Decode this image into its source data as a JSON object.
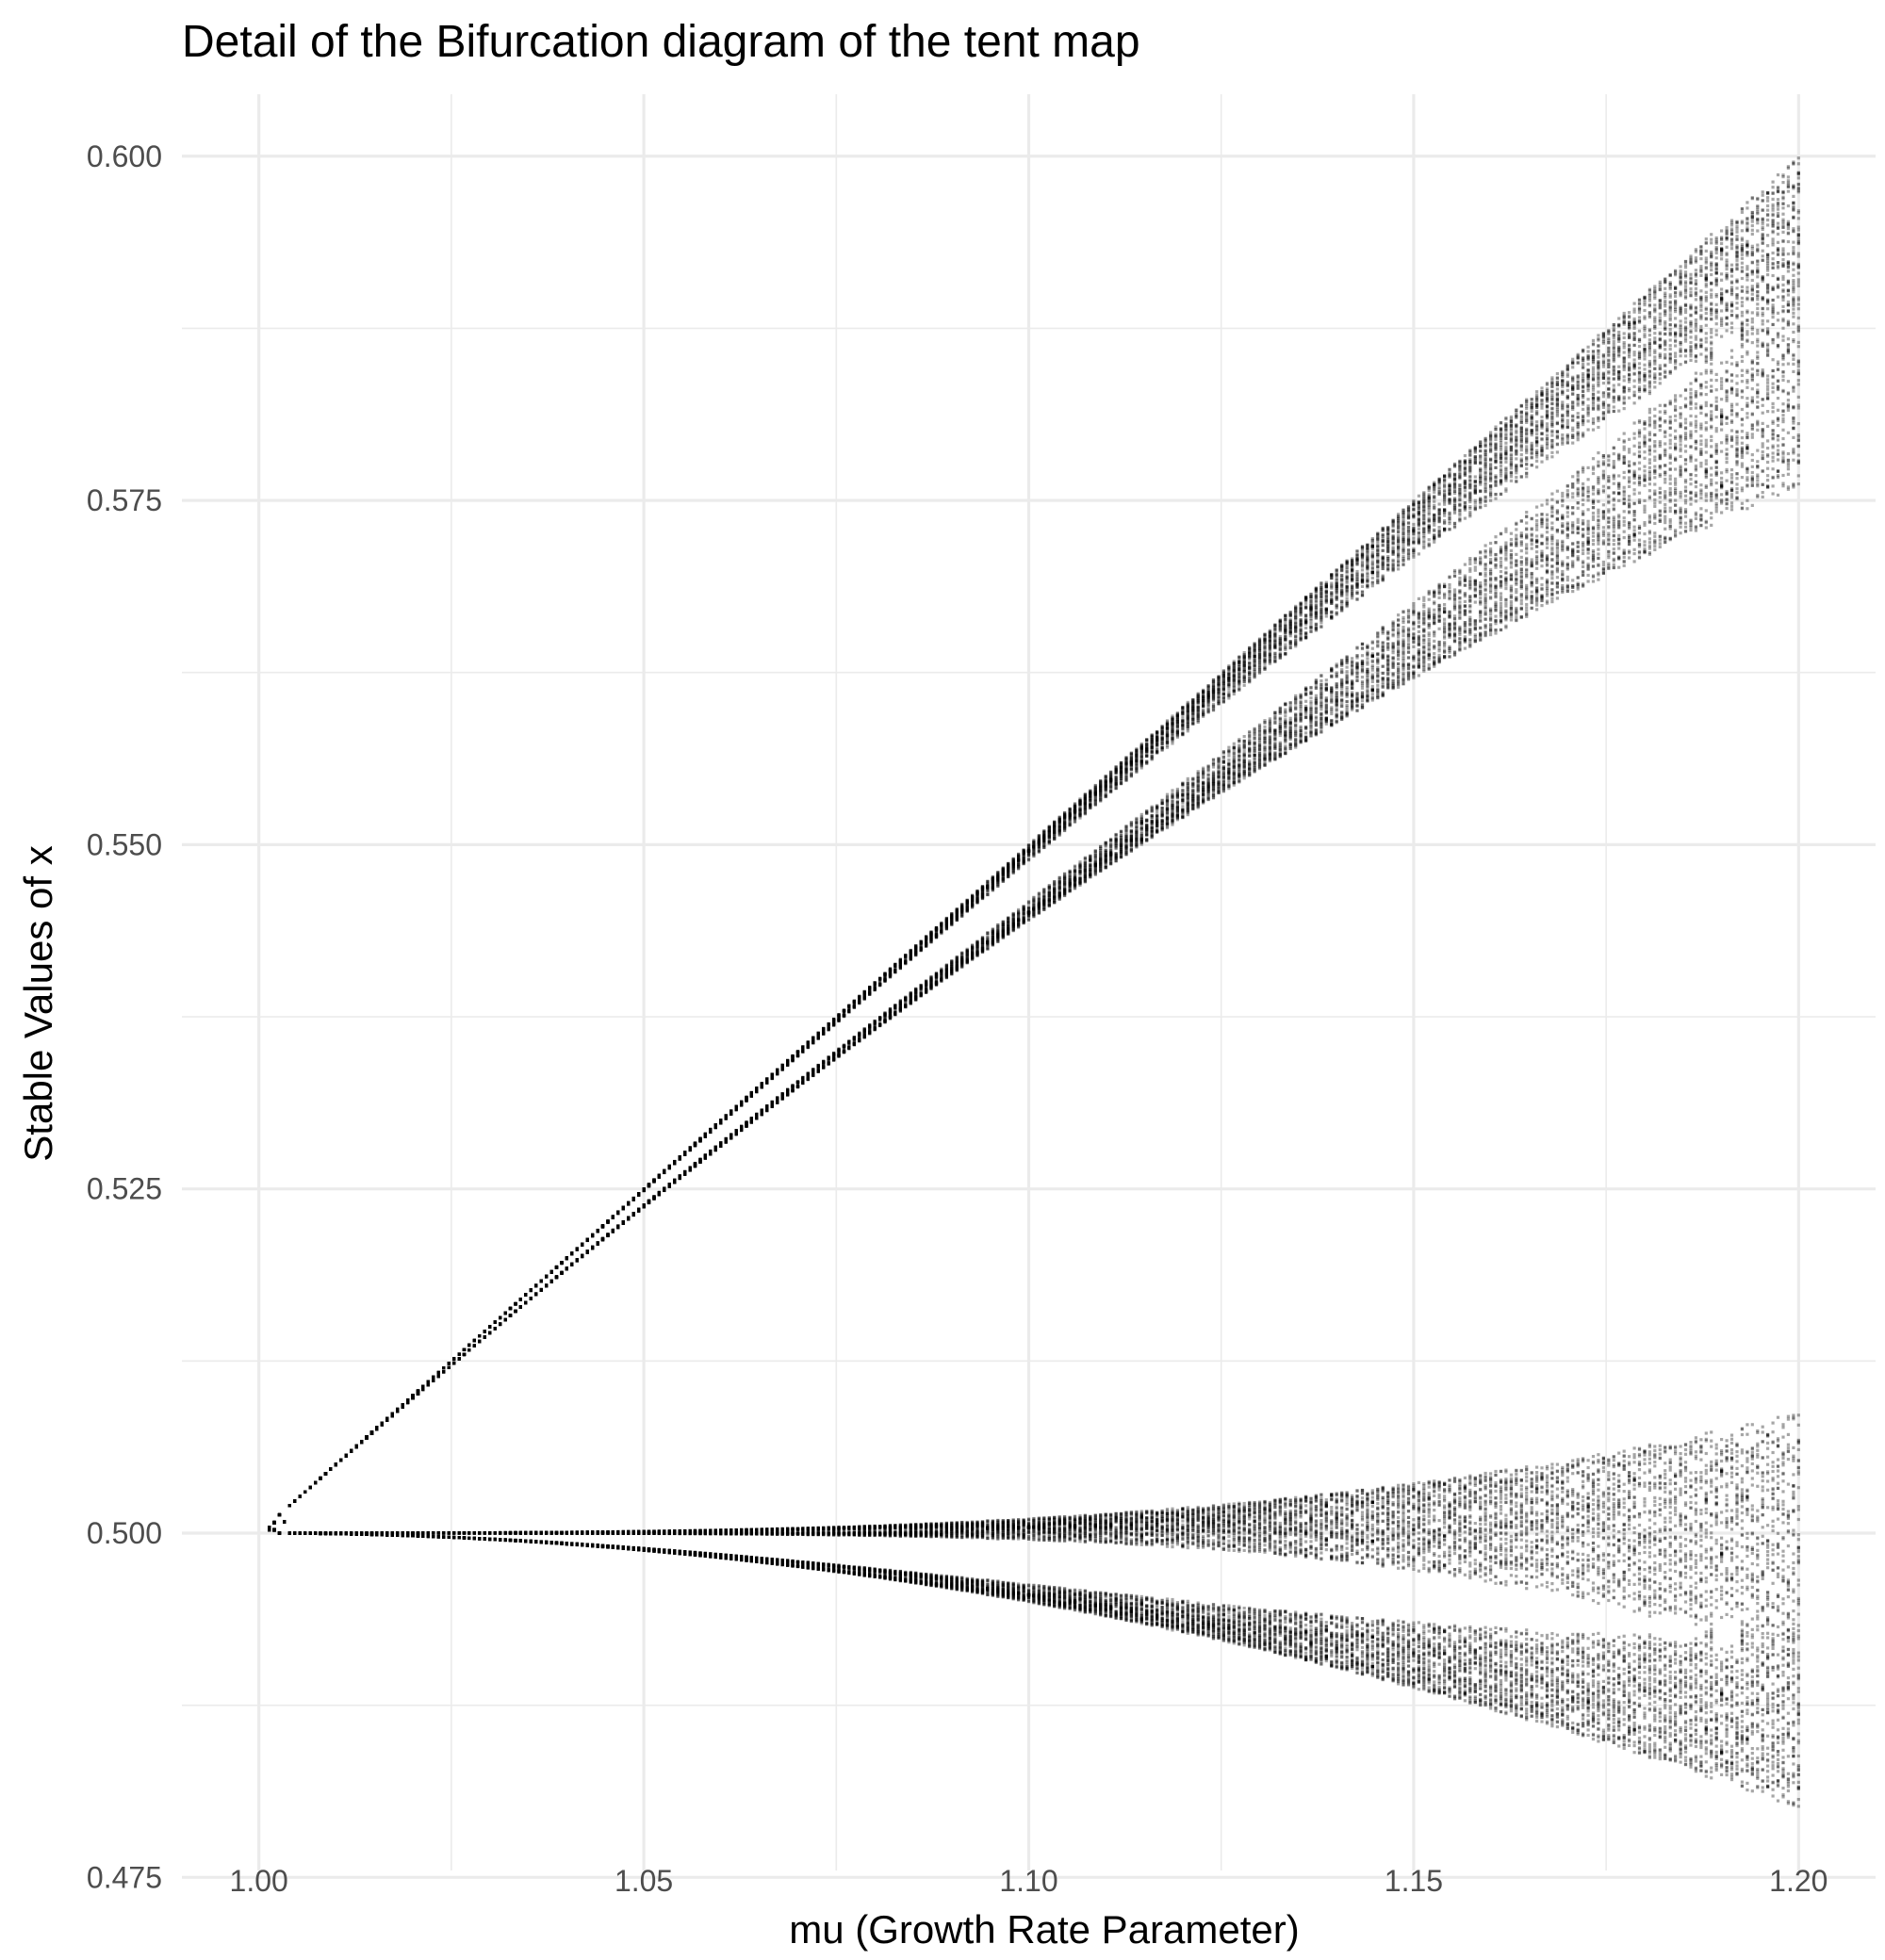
{
  "chart_data": {
    "type": "scatter",
    "title": "Detail of the Bifurcation diagram of the tent map",
    "xlabel": "mu (Growth Rate Parameter)",
    "ylabel": "Stable Values of x",
    "xlim": [
      0.99,
      1.21
    ],
    "ylim": [
      0.4755,
      0.6045
    ],
    "x_ticks": [
      1.0,
      1.05,
      1.1,
      1.15,
      1.2
    ],
    "x_tick_labels": [
      "1.00",
      "1.05",
      "1.10",
      "1.15",
      "1.20"
    ],
    "x_minor_ticks": [
      1.025,
      1.075,
      1.125,
      1.175
    ],
    "y_ticks": [
      0.475,
      0.5,
      0.525,
      0.55,
      0.575,
      0.6
    ],
    "y_tick_labels": [
      "0.475",
      "0.500",
      "0.525",
      "0.550",
      "0.575",
      "0.600"
    ],
    "y_minor_ticks": [
      0.4875,
      0.5125,
      0.5375,
      0.5625,
      0.5875
    ],
    "grid": true,
    "legend": "none",
    "point_color": "#000000",
    "point_alpha": 0.35,
    "series": [
      {
        "x_range": [
          1.0,
          1.2
        ],
        "model": "tent map x(n+1) = mu * min(x(n), 1 - x(n)); stable values after transients",
        "band_envelopes": [
          {
            "x": [
              1.0,
              1.05,
              1.1,
              1.15,
              1.2
            ],
            "y_low": [
              0.5,
              0.5225,
              0.547,
              0.564,
              0.576
            ],
            "y_high": [
              0.5,
              0.525,
              0.55,
              0.575,
              0.6
            ]
          },
          {
            "x": [
              1.0,
              1.05,
              1.1,
              1.15,
              1.2
            ],
            "y_low": [
              0.5,
              0.4985,
              0.495,
              0.489,
              0.48
            ],
            "y_high": [
              0.5,
              0.5,
              0.5005,
              0.504,
              0.509
            ]
          }
        ]
      }
    ]
  }
}
